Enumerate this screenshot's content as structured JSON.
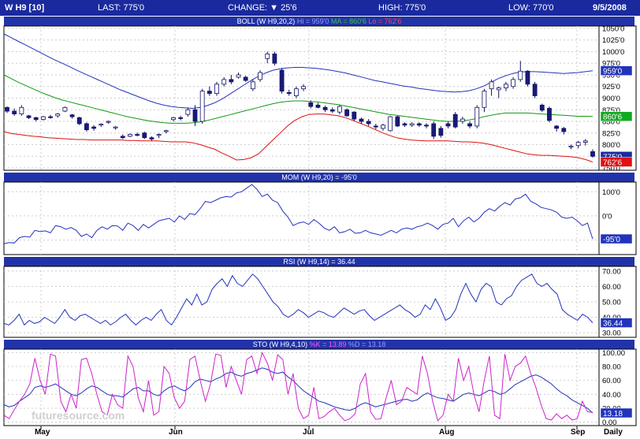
{
  "topbar": {
    "symbol": "W H9 [10]",
    "last": "LAST: 775'0",
    "change": "CHANGE: ▼ 25'6",
    "high": "HIGH: 775'0",
    "low": "LOW: 770'0",
    "date": "9/5/2008"
  },
  "colors": {
    "bar_bg": "#1a2a9e",
    "hi": "#2233bb",
    "mid": "#119911",
    "lo": "#dd1111",
    "k": "#cc22cc",
    "d": "#2233bb"
  },
  "xaxis": {
    "labels": [
      "May",
      "Jun",
      "Jul",
      "Aug",
      "Sep",
      "Daily"
    ]
  },
  "watermark": "futuresource.com",
  "chart_data": [
    {
      "type": "candlestick",
      "name": "price",
      "indicator_title": "BOLL (W H9,20,2)",
      "legend": {
        "hi": "Hi = 959'0",
        "ma": "MA = 860'6",
        "lo": "Lo = 762'6"
      },
      "ytick_labels": [
        "1050'0",
        "1025'0",
        "1000'0",
        "975'0",
        "950'0",
        "925'0",
        "900'0",
        "875'0",
        "850'0",
        "825'0",
        "800'0",
        "775'0",
        "750'0"
      ],
      "yticks": [
        1050,
        1025,
        1000,
        975,
        950,
        925,
        900,
        875,
        850,
        825,
        800,
        775,
        750
      ],
      "ylim": [
        745,
        1055
      ],
      "right_badges": [
        {
          "label": "959'0",
          "value": 959,
          "color": "#2233bb"
        },
        {
          "label": "860'6",
          "value": 860.75,
          "color": "#11aa22"
        },
        {
          "label": "775'0",
          "value": 775,
          "color": "#1a2a9e"
        },
        {
          "label": "762'6",
          "value": 762.75,
          "color": "#dd1111"
        }
      ],
      "candles": [
        [
          880,
          882,
          868,
          872
        ],
        [
          872,
          878,
          862,
          866
        ],
        [
          866,
          885,
          862,
          880
        ],
        [
          862,
          864,
          855,
          858
        ],
        [
          858,
          860,
          850,
          854
        ],
        [
          854,
          862,
          852,
          860
        ],
        [
          860,
          864,
          856,
          858
        ],
        [
          862,
          868,
          858,
          866
        ],
        [
          872,
          882,
          870,
          880
        ],
        [
          864,
          866,
          856,
          860
        ],
        [
          858,
          860,
          842,
          845
        ],
        [
          845,
          848,
          828,
          832
        ],
        [
          838,
          842,
          830,
          835
        ],
        [
          842,
          846,
          838,
          844
        ],
        [
          848,
          852,
          845,
          850
        ],
        [
          836,
          840,
          832,
          838
        ],
        [
          818,
          822,
          812,
          815
        ],
        [
          818,
          824,
          816,
          822
        ],
        [
          822,
          826,
          818,
          820
        ],
        [
          825,
          828,
          812,
          815
        ],
        [
          815,
          818,
          808,
          812
        ],
        [
          820,
          824,
          814,
          822
        ],
        [
          828,
          832,
          824,
          830
        ],
        [
          854,
          860,
          850,
          858
        ],
        [
          858,
          862,
          852,
          856
        ],
        [
          865,
          880,
          860,
          875
        ],
        [
          875,
          885,
          840,
          850
        ],
        [
          850,
          920,
          845,
          915
        ],
        [
          915,
          925,
          905,
          910
        ],
        [
          910,
          935,
          905,
          930
        ],
        [
          930,
          945,
          925,
          940
        ],
        [
          940,
          950,
          930,
          935
        ],
        [
          945,
          955,
          942,
          950
        ],
        [
          945,
          948,
          935,
          938
        ],
        [
          920,
          940,
          915,
          935
        ],
        [
          940,
          960,
          935,
          955
        ],
        [
          985,
          1000,
          975,
          995
        ],
        [
          995,
          1000,
          970,
          975
        ],
        [
          960,
          965,
          910,
          915
        ],
        [
          912,
          918,
          905,
          910
        ],
        [
          905,
          925,
          900,
          920
        ],
        [
          920,
          930,
          915,
          925
        ],
        [
          890,
          895,
          878,
          882
        ],
        [
          885,
          890,
          878,
          880
        ],
        [
          880,
          884,
          870,
          875
        ],
        [
          875,
          880,
          868,
          872
        ],
        [
          870,
          885,
          865,
          882
        ],
        [
          875,
          878,
          860,
          862
        ],
        [
          870,
          872,
          850,
          855
        ],
        [
          855,
          858,
          845,
          850
        ],
        [
          850,
          855,
          840,
          845
        ],
        [
          840,
          845,
          833,
          838
        ],
        [
          835,
          845,
          830,
          842
        ],
        [
          830,
          862,
          828,
          860
        ],
        [
          860,
          862,
          838,
          840
        ],
        [
          845,
          848,
          838,
          842
        ],
        [
          842,
          848,
          838,
          845
        ],
        [
          845,
          848,
          838,
          842
        ],
        [
          842,
          846,
          835,
          840
        ],
        [
          845,
          850,
          812,
          818
        ],
        [
          835,
          840,
          815,
          820
        ],
        [
          845,
          850,
          835,
          840
        ],
        [
          865,
          870,
          835,
          838
        ],
        [
          850,
          860,
          845,
          855
        ],
        [
          845,
          850,
          835,
          840
        ],
        [
          840,
          885,
          835,
          880
        ],
        [
          880,
          920,
          870,
          915
        ],
        [
          920,
          940,
          905,
          935
        ],
        [
          918,
          925,
          900,
          922
        ],
        [
          922,
          935,
          915,
          930
        ],
        [
          925,
          945,
          920,
          940
        ],
        [
          940,
          980,
          935,
          958
        ],
        [
          958,
          960,
          925,
          930
        ],
        [
          930,
          935,
          900,
          905
        ],
        [
          885,
          888,
          870,
          874
        ],
        [
          878,
          882,
          848,
          852
        ],
        [
          840,
          842,
          828,
          835
        ],
        [
          835,
          838,
          822,
          828
        ],
        [
          795,
          800,
          790,
          797
        ],
        [
          798,
          808,
          792,
          805
        ],
        [
          805,
          812,
          798,
          808
        ],
        [
          785,
          790,
          772,
          775
        ]
      ],
      "bb_hi": [
        1038,
        1030,
        1022,
        1014,
        1006,
        998,
        990,
        982,
        975,
        968,
        960,
        953,
        946,
        939,
        932,
        925,
        918,
        912,
        906,
        900,
        894,
        889,
        885,
        882,
        880,
        879,
        878,
        880,
        884,
        890,
        898,
        908,
        918,
        928,
        938,
        947,
        954,
        960,
        963,
        965,
        966,
        966,
        965,
        964,
        962,
        960,
        957,
        954,
        950,
        946,
        942,
        938,
        935,
        932,
        929,
        926,
        924,
        921,
        919,
        917,
        915,
        914,
        913,
        914,
        916,
        920,
        926,
        934,
        942,
        948,
        953,
        956,
        957,
        957,
        956,
        955,
        954,
        953,
        954,
        955,
        957,
        959
      ],
      "bb_mid": [
        950,
        942,
        934,
        927,
        920,
        913,
        907,
        901,
        896,
        892,
        888,
        884,
        880,
        876,
        872,
        868,
        864,
        860,
        857,
        854,
        851,
        849,
        847,
        846,
        846,
        846,
        847,
        849,
        852,
        856,
        860,
        864,
        868,
        872,
        876,
        880,
        884,
        888,
        891,
        893,
        894,
        894,
        893,
        892,
        890,
        888,
        886,
        883,
        880,
        877,
        874,
        871,
        868,
        865,
        863,
        861,
        859,
        857,
        855,
        853,
        851,
        850,
        850,
        851,
        853,
        856,
        860,
        863,
        866,
        868,
        868,
        868,
        868,
        867,
        866,
        865,
        864,
        863,
        862,
        861,
        861,
        860.75
      ],
      "bb_lo": [
        828,
        824,
        822,
        820,
        818,
        817,
        815,
        814,
        813,
        812,
        811,
        811,
        810,
        810,
        810,
        810,
        810,
        809,
        809,
        808,
        808,
        808,
        807,
        806,
        806,
        806,
        804,
        800,
        795,
        790,
        782,
        775,
        767,
        768,
        772,
        780,
        795,
        810,
        825,
        840,
        852,
        860,
        865,
        866,
        866,
        864,
        862,
        858,
        852,
        846,
        840,
        833,
        826,
        820,
        815,
        812,
        810,
        809,
        808,
        808,
        808,
        808,
        807,
        806,
        806,
        805,
        803,
        800,
        796,
        792,
        788,
        784,
        780,
        778,
        777,
        777,
        776,
        775,
        774,
        772,
        768,
        762.75
      ]
    },
    {
      "type": "line",
      "name": "MOM",
      "indicator_title": "MOM (W H9,20) = -95'0",
      "ylim": [
        -160,
        140
      ],
      "yticks": [
        100,
        0,
        -100
      ],
      "ytick_labels": [
        "100'0",
        "0'0",
        "-100'0"
      ],
      "badge": {
        "label": "-95'0",
        "value": -95
      },
      "values": [
        -115,
        -110,
        -112,
        -90,
        -85,
        -88,
        -60,
        -65,
        -62,
        -70,
        -40,
        -45,
        -55,
        -48,
        -60,
        -85,
        -75,
        -90,
        -60,
        -45,
        -55,
        -40,
        -42,
        -60,
        -30,
        -40,
        -60,
        -35,
        -50,
        -35,
        -20,
        -15,
        -10,
        -25,
        0,
        -15,
        10,
        5,
        30,
        60,
        55,
        65,
        75,
        80,
        78,
        95,
        100,
        115,
        130,
        110,
        80,
        90,
        65,
        55,
        20,
        -5,
        -40,
        -30,
        -25,
        -35,
        -15,
        -30,
        -50,
        -60,
        -45,
        -70,
        -65,
        -55,
        -72,
        -70,
        -60,
        -70,
        -75,
        -80,
        -70,
        -60,
        -70,
        -55,
        -50,
        -55,
        -45,
        -40,
        -30,
        -40,
        -55,
        -35,
        -30,
        -10,
        -45,
        -20,
        -5,
        -25,
        -10,
        15,
        30,
        20,
        40,
        55,
        45,
        70,
        75,
        90,
        60,
        50,
        35,
        30,
        25,
        15,
        -5,
        -10,
        -5,
        -20,
        -40,
        -30,
        -95
      ]
    },
    {
      "type": "line",
      "name": "RSI",
      "indicator_title": "RSI (W H9,14) = 36.44",
      "ylim": [
        27,
        73
      ],
      "yticks": [
        70,
        60,
        50,
        40,
        30
      ],
      "ytick_labels": [
        "70.00",
        "60.00",
        "50.00",
        "40.00",
        "30.00"
      ],
      "badge": {
        "label": "36.44",
        "value": 36.44
      },
      "values": [
        36,
        35,
        38,
        42,
        35,
        38,
        36,
        37,
        40,
        38,
        36,
        40,
        45,
        40,
        38,
        41,
        42,
        40,
        38,
        36,
        38,
        35,
        37,
        40,
        42,
        38,
        35,
        38,
        40,
        38,
        42,
        45,
        38,
        35,
        40,
        46,
        52,
        48,
        55,
        48,
        50,
        58,
        62,
        65,
        60,
        67,
        62,
        60,
        64,
        68,
        65,
        60,
        55,
        50,
        47,
        42,
        40,
        42,
        45,
        43,
        40,
        42,
        44,
        43,
        41,
        40,
        43,
        46,
        44,
        42,
        44,
        45,
        41,
        38,
        40,
        42,
        44,
        46,
        48,
        45,
        43,
        40,
        42,
        48,
        45,
        52,
        46,
        38,
        40,
        45,
        55,
        62,
        55,
        50,
        58,
        62,
        60,
        50,
        48,
        52,
        54,
        60,
        64,
        66,
        68,
        62,
        60,
        62,
        58,
        55,
        45,
        42,
        40,
        38,
        42,
        40,
        36.44
      ]
    },
    {
      "type": "line",
      "name": "STO",
      "indicator_title": "STO (W H9,4,10)",
      "legend": {
        "k": "%K = 13.89",
        "d": "%D = 13.18"
      },
      "ylim": [
        -5,
        105
      ],
      "yticks": [
        100,
        80,
        60,
        40,
        20,
        0
      ],
      "ytick_labels": [
        "100.00",
        "80.00",
        "60.00",
        "40.00",
        "20.00",
        "0.00"
      ],
      "badge": {
        "label": "13.18",
        "value": 13.18
      },
      "k_values": [
        10,
        5,
        18,
        30,
        40,
        55,
        92,
        60,
        40,
        98,
        95,
        30,
        15,
        40,
        20,
        90,
        92,
        70,
        40,
        15,
        10,
        40,
        25,
        20,
        95,
        80,
        35,
        15,
        60,
        10,
        15,
        80,
        70,
        35,
        20,
        30,
        90,
        95,
        60,
        30,
        55,
        98,
        96,
        50,
        80,
        60,
        40,
        90,
        95,
        70,
        100,
        85,
        60,
        97,
        90,
        40,
        70,
        20,
        5,
        10,
        50,
        5,
        8,
        15,
        20,
        10,
        2,
        5,
        12,
        55,
        70,
        15,
        4,
        5,
        35,
        60,
        25,
        30,
        50,
        45,
        40,
        95,
        70,
        30,
        2,
        10,
        40,
        30,
        92,
        60,
        80,
        40,
        15,
        60,
        95,
        10,
        5,
        98,
        60,
        80,
        85,
        95,
        70,
        50,
        25,
        5,
        3,
        12,
        5,
        10,
        3,
        5,
        30,
        15,
        13.89
      ],
      "d_values": [
        25,
        22,
        24,
        30,
        35,
        40,
        50,
        52,
        50,
        52,
        55,
        50,
        45,
        40,
        38,
        42,
        48,
        52,
        50,
        45,
        40,
        38,
        38,
        36,
        42,
        48,
        50,
        45,
        45,
        40,
        38,
        45,
        50,
        52,
        48,
        45,
        50,
        58,
        62,
        60,
        58,
        62,
        65,
        70,
        72,
        68,
        66,
        70,
        72,
        75,
        78,
        76,
        72,
        70,
        72,
        65,
        60,
        52,
        45,
        40,
        35,
        30,
        28,
        25,
        22,
        20,
        18,
        17,
        20,
        25,
        28,
        25,
        22,
        24,
        26,
        28,
        30,
        32,
        33,
        30,
        32,
        38,
        42,
        38,
        35,
        34,
        32,
        30,
        35,
        40,
        42,
        40,
        38,
        42,
        46,
        44,
        40,
        42,
        48,
        54,
        58,
        62,
        66,
        68,
        65,
        60,
        55,
        48,
        42,
        38,
        32,
        28,
        24,
        20,
        13.18
      ]
    }
  ]
}
